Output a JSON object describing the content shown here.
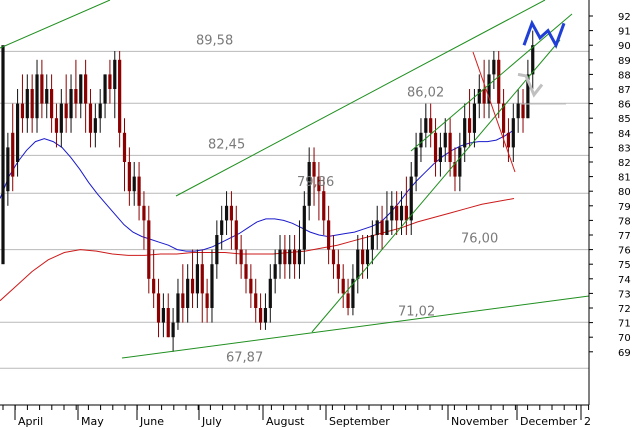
{
  "chart_data": {
    "type": "candlestick",
    "title": "",
    "xlabel": "",
    "ylabel": "",
    "ylim": [
      67.5,
      93
    ],
    "yticks": [
      69,
      70,
      71,
      72,
      73,
      74,
      75,
      76,
      77,
      78,
      79,
      80,
      81,
      82,
      83,
      84,
      85,
      86,
      87,
      88,
      89,
      90,
      91,
      92
    ],
    "x_labels": [
      "April",
      "May",
      "June",
      "July",
      "August",
      "September",
      "November",
      "December",
      "2"
    ],
    "grid": "horizontal at annotated levels only",
    "horizontal_levels": [
      {
        "label": "89,58",
        "value": 89.58
      },
      {
        "label": "86,02",
        "value": 86.02
      },
      {
        "label": "82,45",
        "value": 82.45
      },
      {
        "label": "79,86",
        "value": 79.86
      },
      {
        "label": "76,00",
        "value": 76.0
      },
      {
        "label": "71,02",
        "value": 71.02
      },
      {
        "label": "67,87",
        "value": 67.87
      }
    ],
    "candles": [
      [
        75,
        90,
        84,
        80
      ],
      [
        80,
        83,
        84,
        79
      ],
      [
        84,
        81,
        86,
        80
      ],
      [
        82,
        86,
        87,
        81
      ],
      [
        86,
        85,
        88,
        84
      ],
      [
        85,
        87,
        88,
        84
      ],
      [
        87,
        85,
        88,
        84
      ],
      [
        85,
        88,
        89,
        84
      ],
      [
        88,
        86,
        89,
        85
      ],
      [
        86,
        87,
        88,
        85
      ],
      [
        87,
        85,
        88,
        84
      ],
      [
        85,
        84,
        86,
        83
      ],
      [
        84,
        86,
        87,
        83
      ],
      [
        86,
        85,
        88,
        84
      ],
      [
        85,
        87,
        88,
        84
      ],
      [
        87,
        86,
        89,
        85
      ],
      [
        86,
        88,
        88,
        85
      ],
      [
        88,
        86,
        89,
        84
      ],
      [
        86,
        84,
        87,
        83
      ],
      [
        84,
        85,
        86,
        83
      ],
      [
        85,
        86,
        87,
        84
      ],
      [
        86,
        88,
        88,
        85
      ],
      [
        88,
        87,
        89,
        86
      ],
      [
        87,
        89,
        89.6,
        85
      ],
      [
        89,
        84,
        89.6,
        83
      ],
      [
        84,
        82,
        85,
        80
      ],
      [
        82,
        80,
        83,
        79
      ],
      [
        80,
        81,
        82,
        79
      ],
      [
        81,
        79,
        82,
        78
      ],
      [
        79,
        78,
        80,
        76
      ],
      [
        78,
        74,
        79,
        73
      ],
      [
        74,
        73,
        76,
        72
      ],
      [
        73,
        71,
        74,
        70
      ],
      [
        71,
        72,
        73,
        70
      ],
      [
        72,
        70,
        73,
        70
      ],
      [
        70,
        71,
        72,
        69
      ],
      [
        71,
        73,
        74,
        70.5
      ],
      [
        73,
        72,
        75,
        71
      ],
      [
        72,
        74,
        75,
        71
      ],
      [
        74,
        73,
        76,
        72
      ],
      [
        73,
        75,
        76,
        72
      ],
      [
        75,
        73,
        76,
        71
      ],
      [
        73,
        72,
        74,
        71
      ],
      [
        72,
        75,
        76,
        71
      ],
      [
        75,
        77,
        78,
        74
      ],
      [
        77,
        78,
        79,
        76
      ],
      [
        78,
        79,
        80,
        77
      ],
      [
        79,
        78,
        80,
        76
      ],
      [
        78,
        76,
        79,
        75
      ],
      [
        76,
        75,
        77,
        74
      ],
      [
        75,
        74,
        76,
        73
      ],
      [
        74,
        73,
        75,
        72
      ],
      [
        73,
        72,
        74,
        71
      ],
      [
        72,
        71,
        73,
        70.5
      ],
      [
        71,
        72,
        73,
        70.5
      ],
      [
        72,
        74,
        75,
        71
      ],
      [
        74,
        75,
        76,
        73
      ],
      [
        75,
        76,
        77,
        74
      ],
      [
        76,
        75,
        77,
        74
      ],
      [
        75,
        76,
        77,
        74
      ],
      [
        76,
        75,
        77,
        74
      ],
      [
        75,
        76,
        78,
        74
      ],
      [
        76,
        79,
        80,
        75
      ],
      [
        79,
        82,
        83,
        78
      ],
      [
        82,
        81,
        83,
        79
      ],
      [
        81,
        80,
        82,
        78
      ],
      [
        80,
        78,
        81,
        77
      ],
      [
        78,
        76,
        79,
        75
      ],
      [
        76,
        75,
        77,
        74
      ],
      [
        75,
        74,
        76,
        73
      ],
      [
        74,
        73,
        75,
        72
      ],
      [
        73,
        72,
        74,
        71.5
      ],
      [
        72,
        74,
        75,
        71.5
      ],
      [
        74,
        76,
        77,
        73
      ],
      [
        76,
        75,
        77,
        74
      ],
      [
        75,
        76,
        77,
        74
      ],
      [
        76,
        77,
        78,
        75
      ],
      [
        77,
        78,
        79,
        76
      ],
      [
        78,
        77,
        79,
        76
      ],
      [
        77,
        78,
        80,
        77
      ],
      [
        78,
        79,
        80,
        77
      ],
      [
        79,
        78,
        80,
        77
      ],
      [
        78,
        79,
        80,
        77
      ],
      [
        79,
        78,
        81,
        77
      ],
      [
        78,
        81,
        82,
        77
      ],
      [
        81,
        83,
        84,
        80
      ],
      [
        83,
        84,
        85,
        82
      ],
      [
        84,
        85,
        86,
        83
      ],
      [
        85,
        84,
        86,
        83
      ],
      [
        84,
        82,
        85,
        81
      ],
      [
        82,
        83,
        84,
        81
      ],
      [
        83,
        84,
        85,
        82
      ],
      [
        84,
        82,
        85,
        81
      ],
      [
        82,
        81,
        83,
        80
      ],
      [
        81,
        83,
        84,
        80
      ],
      [
        83,
        85,
        86,
        82
      ],
      [
        85,
        84,
        87,
        83
      ],
      [
        84,
        86,
        87,
        83
      ],
      [
        86,
        87,
        88,
        85
      ],
      [
        87,
        86,
        89,
        85
      ],
      [
        86,
        88,
        89,
        85
      ],
      [
        88,
        89,
        89.6,
        87
      ],
      [
        89,
        86,
        89.6,
        85
      ],
      [
        86,
        84,
        87,
        83
      ],
      [
        84,
        83,
        85,
        82
      ],
      [
        83,
        85,
        86,
        82
      ],
      [
        85,
        86,
        87,
        84
      ],
      [
        86,
        85,
        87,
        84
      ],
      [
        85,
        88,
        89,
        85
      ],
      [
        88,
        90,
        91,
        87
      ]
    ],
    "series": [
      {
        "values": [
          79.5,
          81,
          82,
          82.8,
          83.4,
          83.6,
          83.4,
          83,
          82.3,
          81.5,
          80.6,
          79.8,
          79.1,
          78.4,
          77.7,
          77.2,
          76.9,
          76.7,
          76.5,
          76.3,
          76,
          75.9,
          75.9,
          76,
          76.2,
          76.5,
          76.8,
          77.1,
          77.5,
          77.9,
          78.1,
          78.1,
          78,
          77.8,
          77.5,
          77.2,
          77,
          76.9,
          77,
          77.1,
          77.2,
          77.4,
          77.6,
          77.9,
          78.5,
          79.2,
          80,
          80.7,
          81.3,
          81.9,
          82.4,
          82.8,
          83.1,
          83.3,
          83.4,
          83.4,
          83.5,
          83.8,
          84.2
        ]
      },
      {
        "values": [
          72.5,
          73.5,
          74.5,
          75.3,
          75.8,
          76,
          75.9,
          75.7,
          75.6,
          75.6,
          75.7,
          75.7,
          75.8,
          75.8,
          75.8,
          75.7,
          75.7,
          75.7,
          75.8,
          75.9,
          76.1,
          76.3,
          76.6,
          76.9,
          77.2,
          77.5,
          77.9,
          78.2,
          78.5,
          78.8,
          79.1,
          79.3,
          79.5
        ]
      }
    ],
    "trendlines": [
      {
        "from": [
          72.1,
          70.0
        ],
        "to": [
          73.0,
          94.0
        ]
      },
      {
        "from": [
          80.1,
          82.8
        ],
        "to": [
          89.7,
          94.1
        ]
      },
      {
        "from": [
          71.8,
          70.5
        ],
        "to": [
          83.8,
          87.2
        ]
      },
      {
        "from": [
          72.0,
          74.0
        ],
        "to": [
          93.5,
          93.0
        ]
      },
      {
        "from": [
          89.7,
          82.7
        ],
        "to": [
          81.5,
          81.9
        ]
      },
      {
        "from": [
          89.7,
          92.0
        ],
        "to": [
          86.2,
          86.0
        ]
      }
    ],
    "projection_paths": [
      {
        "values": [
          90,
          91.5,
          90.5,
          91,
          90,
          91.5
        ]
      },
      {
        "values": [
          88.0,
          87.9,
          86.6,
          87.3
        ]
      }
    ]
  }
}
